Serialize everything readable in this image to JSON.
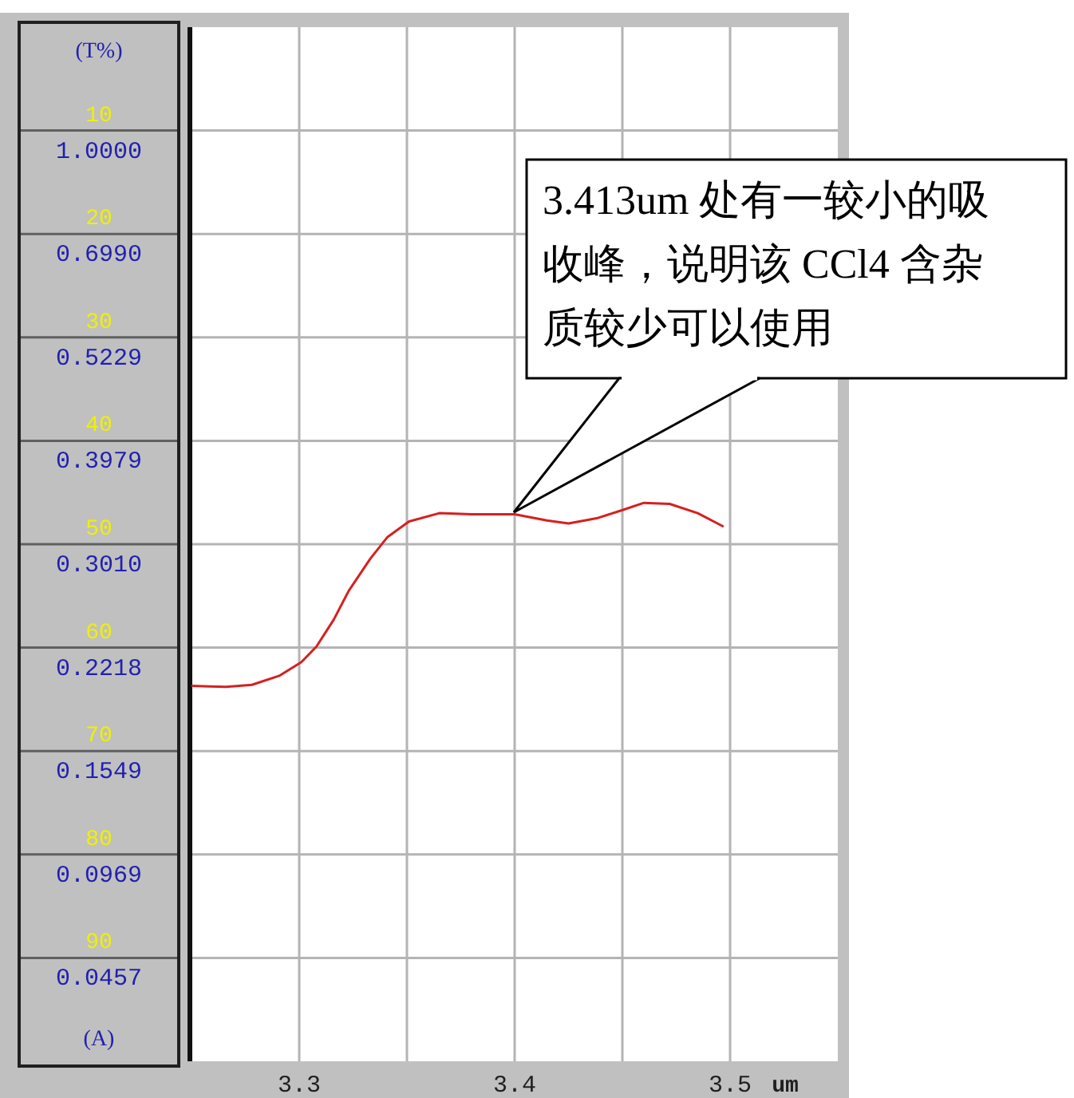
{
  "chart_data": {
    "type": "line",
    "xlabel": "um",
    "ylabel": "(T%)",
    "y2label": "(A)",
    "xlim": [
      3.25,
      3.55
    ],
    "ylim": [
      100,
      0
    ],
    "grid": true,
    "xticks": [
      3.3,
      {
        "value": 3.35,
        "label": null
      },
      3.4,
      {
        "value": 3.45,
        "label": null
      },
      3.5
    ],
    "yticks": [
      10,
      20,
      30,
      40,
      50,
      60,
      70,
      80,
      90
    ],
    "x": [
      3.25,
      3.266,
      3.278,
      3.291,
      3.301,
      3.308,
      3.316,
      3.323,
      3.333,
      3.341,
      3.351,
      3.365,
      3.38,
      3.4,
      3.415,
      3.425,
      3.438,
      3.45,
      3.46,
      3.472,
      3.485,
      3.497
    ],
    "series": [
      {
        "color": "#d62020",
        "values": [
          63.7,
          63.8,
          63.6,
          62.7,
          61.4,
          59.9,
          57.3,
          54.5,
          51.4,
          49.3,
          47.8,
          47.0,
          47.1,
          47.1,
          47.7,
          48.0,
          47.5,
          46.7,
          46.0,
          46.1,
          47.0,
          48.3
        ]
      }
    ],
    "annotations": [
      "3.413um 处有一较小的吸收峰，说明该 CCl4 含杂质较少可以使用",
      "1.0000",
      "0.6990",
      "0.5229",
      "0.3979",
      "0.3010",
      "0.2218",
      "0.1549",
      "0.0969",
      "0.0457"
    ]
  }
}
